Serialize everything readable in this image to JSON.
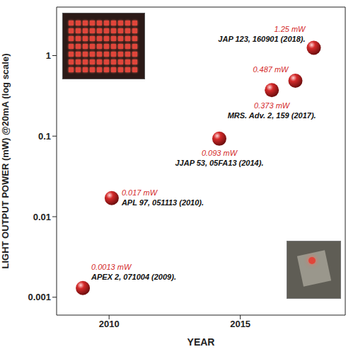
{
  "chart_data": {
    "type": "scatter",
    "x": [
      2009.0,
      2010.1,
      2014.2,
      2016.2,
      2017.1,
      2017.8
    ],
    "values": [
      0.0013,
      0.017,
      0.093,
      0.373,
      0.487,
      1.25
    ],
    "value_labels": [
      "0.0013 mW",
      "0.017 mW",
      "0.093 mW",
      "0.373 mW",
      "0.487 mW",
      "1.25 mW"
    ],
    "references": [
      "APEX 2, 071004 (2009).",
      "APL 97, 051113 (2010).",
      "JJAP 53, 05FA13 (2014).",
      "MRS. Adv. 2, 159 (2017).",
      null,
      "JAP 123, 160901 (2018)."
    ],
    "x_label": "YEAR",
    "y_label": "LIGHT OUTPUT POWER (mW) @20mA (log scale)",
    "xlim": [
      2008,
      2019
    ],
    "xticks": [
      2010,
      2015
    ],
    "ylim": [
      0.0006,
      4
    ],
    "yticks": [
      0.001,
      0.01,
      0.1,
      1
    ],
    "log": "y",
    "grid": false,
    "color": "#d42a2a",
    "marker": "circle",
    "data_labels": true
  }
}
